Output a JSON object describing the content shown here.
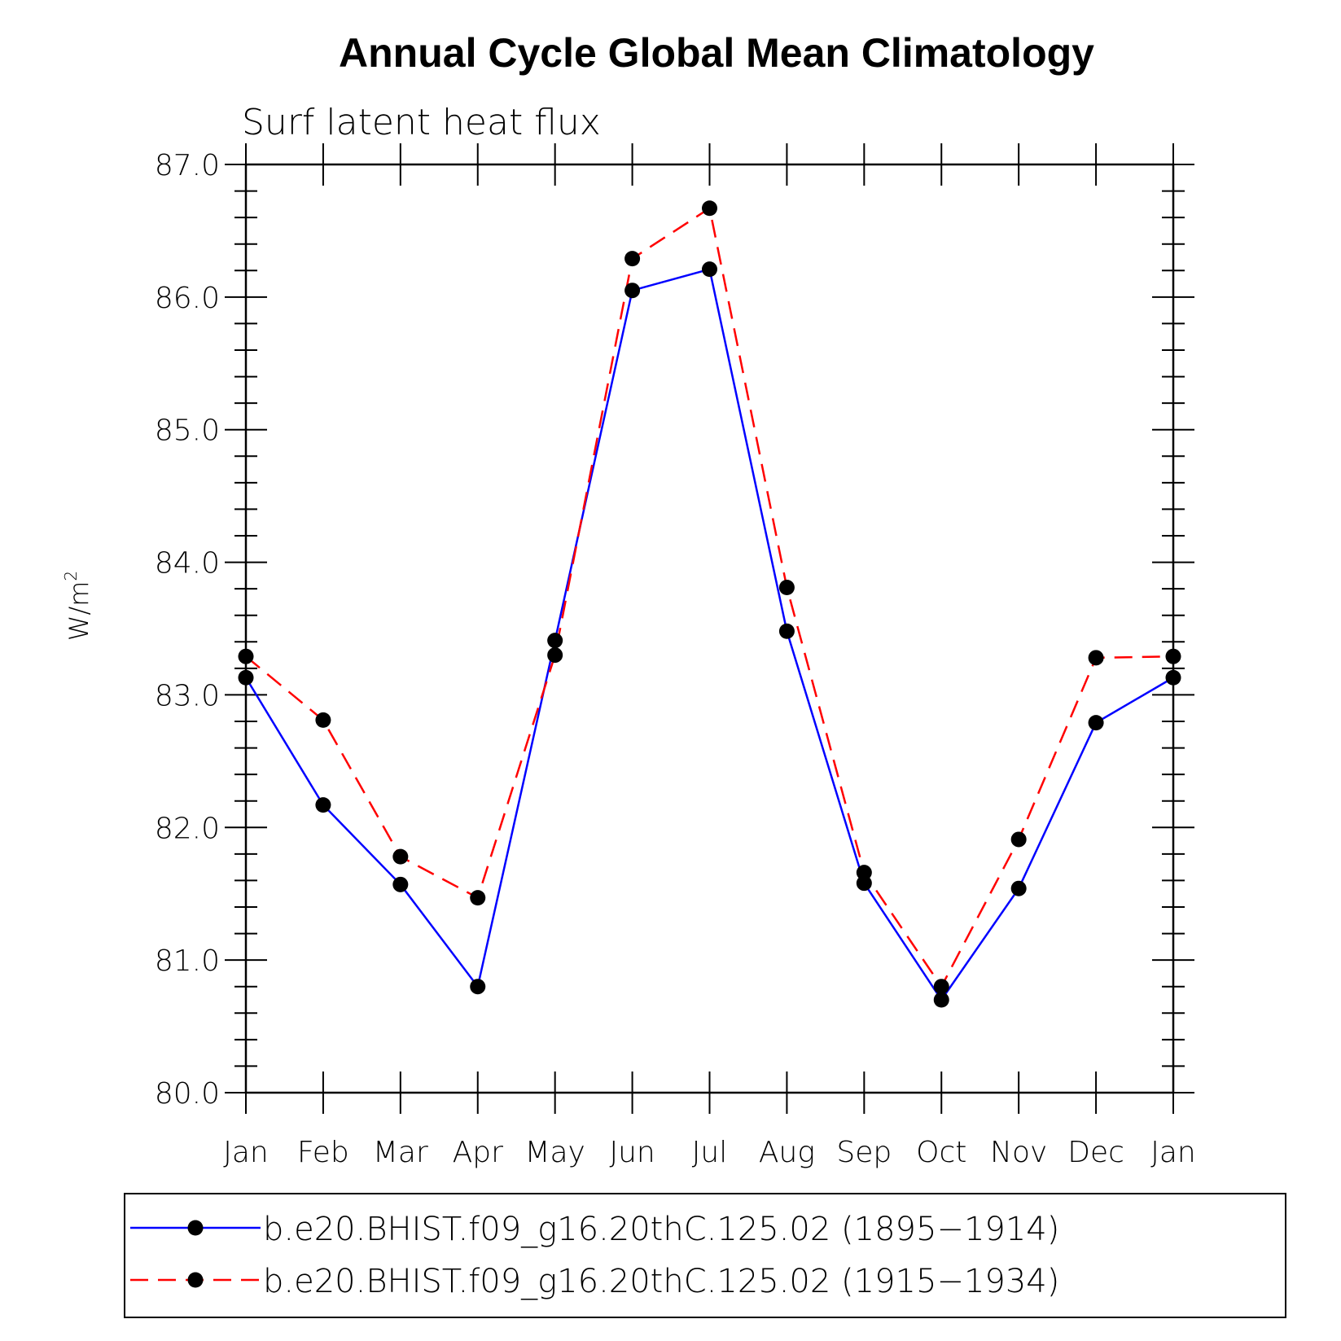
{
  "chart_data": {
    "type": "line",
    "title": "Annual Cycle Global Mean Climatology",
    "subtitle": "Surf latent heat flux",
    "ylabel_base": "W/m",
    "ylabel_sup": "2",
    "xlabel": "",
    "categories": [
      "Jan",
      "Feb",
      "Mar",
      "Apr",
      "May",
      "Jun",
      "Jul",
      "Aug",
      "Sep",
      "Oct",
      "Nov",
      "Dec",
      "Jan"
    ],
    "ylim": [
      80.0,
      87.0
    ],
    "yticks": [
      "80.0",
      "81.0",
      "82.0",
      "83.0",
      "84.0",
      "85.0",
      "86.0",
      "87.0"
    ],
    "series": [
      {
        "name": "b.e20.BHIST.f09_g16.20thC.125.02 (1895−1914)",
        "color": "#0000ff",
        "style": "solid",
        "values": [
          83.13,
          82.17,
          81.57,
          80.8,
          83.41,
          86.05,
          86.21,
          83.48,
          81.58,
          80.7,
          81.54,
          82.79,
          83.13
        ]
      },
      {
        "name": "b.e20.BHIST.f09_g16.20thC.125.02 (1915−1934)",
        "color": "#ff0000",
        "style": "dashed",
        "values": [
          83.29,
          82.81,
          81.78,
          81.47,
          83.3,
          86.29,
          86.67,
          83.81,
          81.66,
          80.8,
          81.91,
          83.28,
          83.29
        ]
      }
    ],
    "legend_position": "bottom"
  }
}
